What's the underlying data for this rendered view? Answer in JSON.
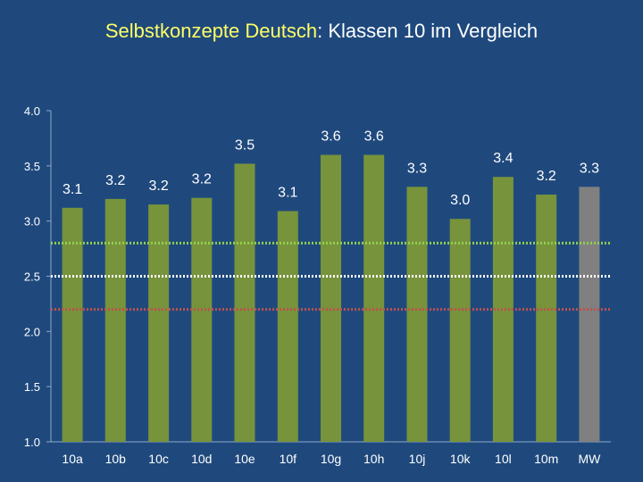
{
  "title": {
    "part1": "Selbstkonzepte Deutsch",
    "part2": ": Klassen 10 im Vergleich"
  },
  "colors": {
    "background": "#1f497d",
    "bar": "#77933c",
    "bar_mean": "#808080",
    "ref_green": "#92d050",
    "ref_white": "#ffffff",
    "ref_red": "#c0504d"
  },
  "chart_data": {
    "type": "bar",
    "categories": [
      "10a",
      "10b",
      "10c",
      "10d",
      "10e",
      "10f",
      "10g",
      "10h",
      "10j",
      "10k",
      "10l",
      "10m",
      "MW"
    ],
    "values": [
      3.12,
      3.2,
      3.15,
      3.21,
      3.52,
      3.09,
      3.6,
      3.6,
      3.31,
      3.02,
      3.4,
      3.24,
      3.31
    ],
    "value_labels": [
      "3.1",
      "3.2",
      "3.2",
      "3.2",
      "3.5",
      "3.1",
      "3.6",
      "3.6",
      "3.3",
      "3.0",
      "3.4",
      "3.2",
      "3.3"
    ],
    "ylim": [
      1.0,
      4.0
    ],
    "yticks": [
      "1.0",
      "1.5",
      "2.0",
      "2.5",
      "3.0",
      "3.5",
      "4.0"
    ],
    "reference_lines": [
      {
        "value": 2.8,
        "color": "green"
      },
      {
        "value": 2.5,
        "color": "white"
      },
      {
        "value": 2.2,
        "color": "red"
      }
    ],
    "title": "Selbstkonzepte Deutsch: Klassen 10 im Vergleich",
    "xlabel": "",
    "ylabel": ""
  }
}
